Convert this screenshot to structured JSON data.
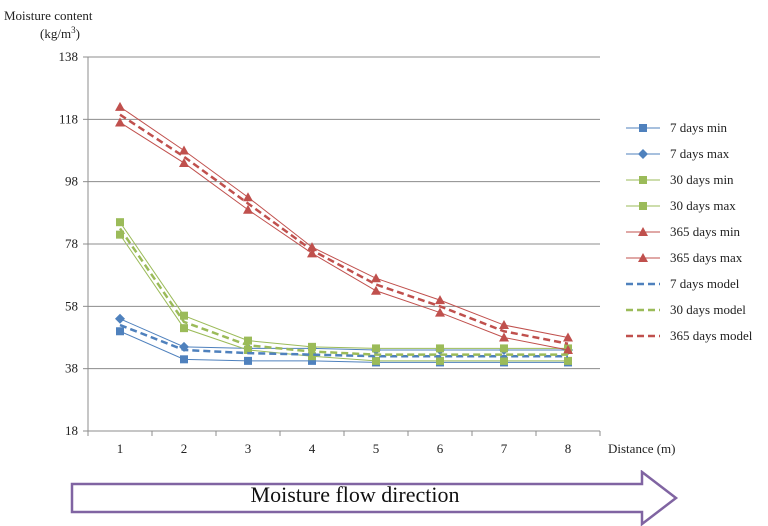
{
  "chart_data": {
    "type": "line",
    "y_title_line1": "Moisture content",
    "y_title_line2": "(kg/m",
    "y_title_sup": "3",
    "y_title_end": ")",
    "xlabel": "Distance (m)",
    "ylim": [
      18,
      138
    ],
    "yticks": [
      18,
      38,
      58,
      78,
      98,
      118,
      138
    ],
    "categories": [
      1,
      2,
      3,
      4,
      5,
      6,
      7,
      8
    ],
    "grid": "horizontal",
    "legend_position": "right",
    "series": [
      {
        "name": "7 days min",
        "color": "#4f81bd",
        "marker": "square",
        "dash": false,
        "values": [
          50,
          41,
          40.5,
          40.5,
          40,
          40,
          40,
          40
        ]
      },
      {
        "name": "7 days max",
        "color": "#4f81bd",
        "marker": "diamond",
        "dash": false,
        "values": [
          54,
          45,
          44.5,
          44.5,
          44,
          44,
          44,
          44
        ]
      },
      {
        "name": "30 days min",
        "color": "#9bbb59",
        "marker": "square",
        "dash": false,
        "values": [
          81,
          51,
          44,
          42,
          40.5,
          40.5,
          40.5,
          40.5
        ]
      },
      {
        "name": "30 days max",
        "color": "#9bbb59",
        "marker": "square",
        "dash": false,
        "values": [
          85,
          55,
          47,
          45,
          44.5,
          44.5,
          44.5,
          44.5
        ]
      },
      {
        "name": "365 days min",
        "color": "#c0504d",
        "marker": "triangle",
        "dash": false,
        "values": [
          117,
          104,
          89,
          75,
          63,
          56,
          48,
          44
        ]
      },
      {
        "name": "365 days max",
        "color": "#c0504d",
        "marker": "triangle",
        "dash": false,
        "values": [
          122,
          108,
          93,
          77,
          67,
          60,
          52,
          48
        ]
      },
      {
        "name": "7 days model",
        "color": "#4f81bd",
        "marker": "none",
        "dash": true,
        "values": [
          52,
          44,
          43,
          42.5,
          42,
          42,
          42,
          42
        ]
      },
      {
        "name": "30 days model",
        "color": "#9bbb59",
        "marker": "none",
        "dash": true,
        "values": [
          83,
          53,
          45.5,
          43.5,
          42.5,
          42.5,
          42.5,
          42.5
        ]
      },
      {
        "name": "365 days model",
        "color": "#c0504d",
        "marker": "none",
        "dash": true,
        "values": [
          119.5,
          106,
          91,
          76,
          65,
          58,
          50,
          46
        ]
      }
    ]
  },
  "flow_arrow": {
    "label": "Moisture flow direction",
    "color": "#8064a2"
  }
}
